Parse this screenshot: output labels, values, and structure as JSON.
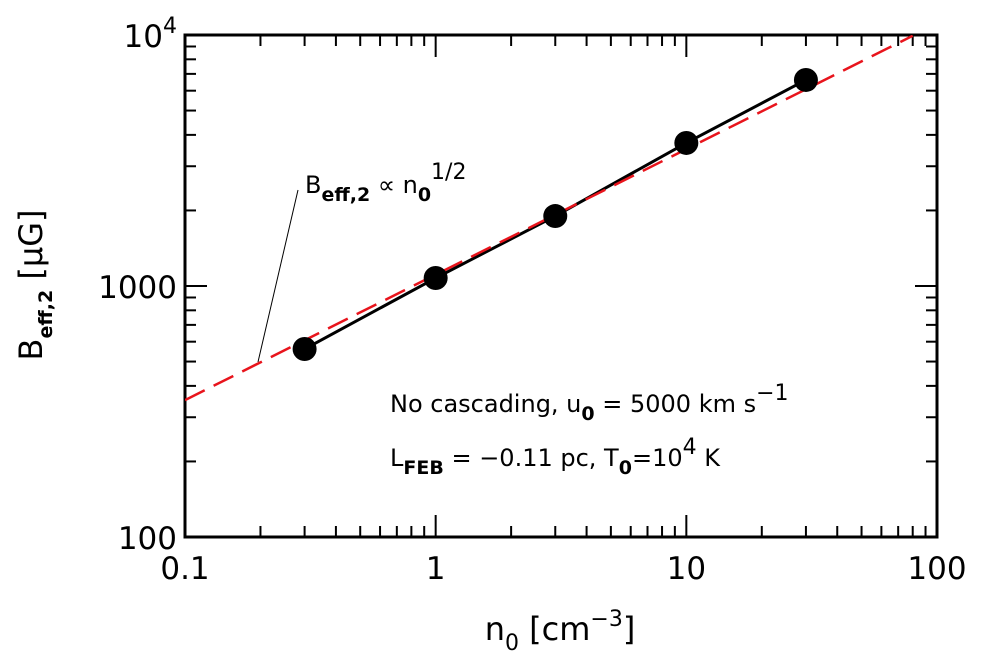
{
  "chart_data": {
    "type": "line",
    "xlabel": [
      "n",
      "0",
      " [cm",
      "−3",
      "]"
    ],
    "ylabel": [
      "B",
      "eff,2",
      " [μG]"
    ],
    "annotations": [
      [
        "B",
        "eff,2",
        " ∝ n",
        "0",
        "1/2"
      ],
      [
        "No cascading, u",
        "0",
        " = 5000 km s",
        "−1"
      ],
      [
        "L",
        "FEB",
        " = −0.11 pc,  T",
        "0",
        "=10",
        "4",
        " K"
      ]
    ],
    "xscale": "log",
    "yscale": "log",
    "xlim": [
      0.1,
      100
    ],
    "ylim": [
      100,
      10000
    ],
    "xticks": [
      0.1,
      1,
      10,
      100
    ],
    "yticks": [
      100,
      1000,
      {
        "value": 10000,
        "label": "10",
        "exponent": "4"
      }
    ],
    "xminorticks": [
      0.2,
      0.3,
      0.4,
      0.5,
      0.6,
      0.7,
      0.8,
      0.9,
      2,
      3,
      4,
      5,
      6,
      7,
      8,
      9,
      20,
      30,
      40,
      50,
      60,
      70,
      80,
      90
    ],
    "yminorticks": [
      200,
      300,
      400,
      500,
      600,
      700,
      800,
      900,
      2000,
      3000,
      4000,
      5000,
      6000,
      7000,
      8000,
      9000
    ],
    "series": [
      {
        "x": [
          0.3,
          1,
          3,
          10,
          30
        ],
        "values": [
          561,
          1076,
          1900,
          3715,
          6620
        ],
        "color": "#000000",
        "markers": true,
        "dashed": false
      },
      {
        "x": [
          0.1,
          80
        ],
        "values": [
          351,
          9928
        ],
        "color": "#e8141c",
        "markers": false,
        "dashed": true
      }
    ]
  }
}
